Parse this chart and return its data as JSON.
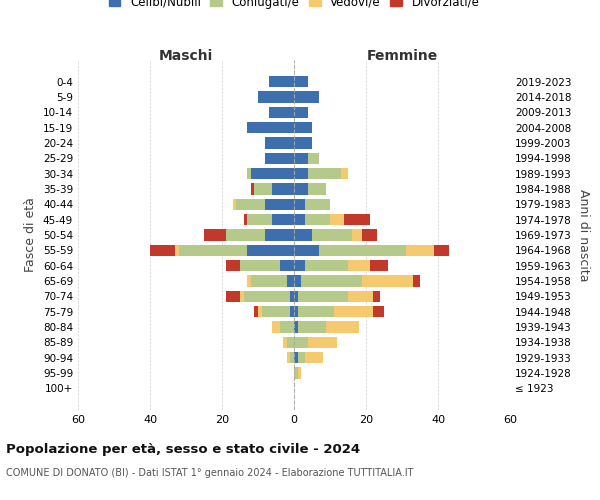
{
  "age_groups": [
    "100+",
    "95-99",
    "90-94",
    "85-89",
    "80-84",
    "75-79",
    "70-74",
    "65-69",
    "60-64",
    "55-59",
    "50-54",
    "45-49",
    "40-44",
    "35-39",
    "30-34",
    "25-29",
    "20-24",
    "15-19",
    "10-14",
    "5-9",
    "0-4"
  ],
  "birth_years": [
    "≤ 1923",
    "1924-1928",
    "1929-1933",
    "1934-1938",
    "1939-1943",
    "1944-1948",
    "1949-1953",
    "1954-1958",
    "1959-1963",
    "1964-1968",
    "1969-1973",
    "1974-1978",
    "1979-1983",
    "1984-1988",
    "1989-1993",
    "1994-1998",
    "1999-2003",
    "2004-2008",
    "2009-2013",
    "2014-2018",
    "2019-2023"
  ],
  "male": {
    "celibi": [
      0,
      0,
      0,
      0,
      0,
      1,
      1,
      2,
      4,
      13,
      8,
      6,
      8,
      6,
      12,
      8,
      8,
      13,
      7,
      10,
      7
    ],
    "coniugati": [
      0,
      0,
      1,
      2,
      4,
      8,
      13,
      10,
      11,
      19,
      11,
      7,
      8,
      5,
      1,
      0,
      0,
      0,
      0,
      0,
      0
    ],
    "vedovi": [
      0,
      0,
      1,
      1,
      2,
      1,
      1,
      1,
      0,
      1,
      0,
      0,
      1,
      0,
      0,
      0,
      0,
      0,
      0,
      0,
      0
    ],
    "divorziati": [
      0,
      0,
      0,
      0,
      0,
      1,
      4,
      0,
      4,
      7,
      6,
      1,
      0,
      1,
      0,
      0,
      0,
      0,
      0,
      0,
      0
    ]
  },
  "female": {
    "nubili": [
      0,
      0,
      1,
      0,
      1,
      1,
      1,
      2,
      3,
      7,
      5,
      3,
      3,
      4,
      4,
      4,
      5,
      5,
      4,
      7,
      4
    ],
    "coniugate": [
      0,
      1,
      2,
      4,
      8,
      10,
      14,
      17,
      12,
      24,
      11,
      7,
      7,
      5,
      9,
      3,
      0,
      0,
      0,
      0,
      0
    ],
    "vedove": [
      0,
      1,
      5,
      8,
      9,
      11,
      7,
      14,
      6,
      8,
      3,
      4,
      0,
      0,
      2,
      0,
      0,
      0,
      0,
      0,
      0
    ],
    "divorziate": [
      0,
      0,
      0,
      0,
      0,
      3,
      2,
      2,
      5,
      4,
      4,
      7,
      0,
      0,
      0,
      0,
      0,
      0,
      0,
      0,
      0
    ]
  },
  "colors": {
    "celibi": "#3d6faf",
    "coniugati": "#b5c98a",
    "vedovi": "#f5c96e",
    "divorziati": "#c0392b"
  },
  "title": "Popolazione per età, sesso e stato civile - 2024",
  "subtitle": "COMUNE DI DONATO (BI) - Dati ISTAT 1° gennaio 2024 - Elaborazione TUTTITALIA.IT",
  "xlabel_left": "Maschi",
  "xlabel_right": "Femmine",
  "ylabel_left": "Fasce di età",
  "ylabel_right": "Anni di nascita",
  "xlim": 60,
  "legend_labels": [
    "Celibi/Nubili",
    "Coniugati/e",
    "Vedovi/e",
    "Divorziati/e"
  ],
  "bg_color": "#ffffff",
  "grid_color": "#cccccc"
}
